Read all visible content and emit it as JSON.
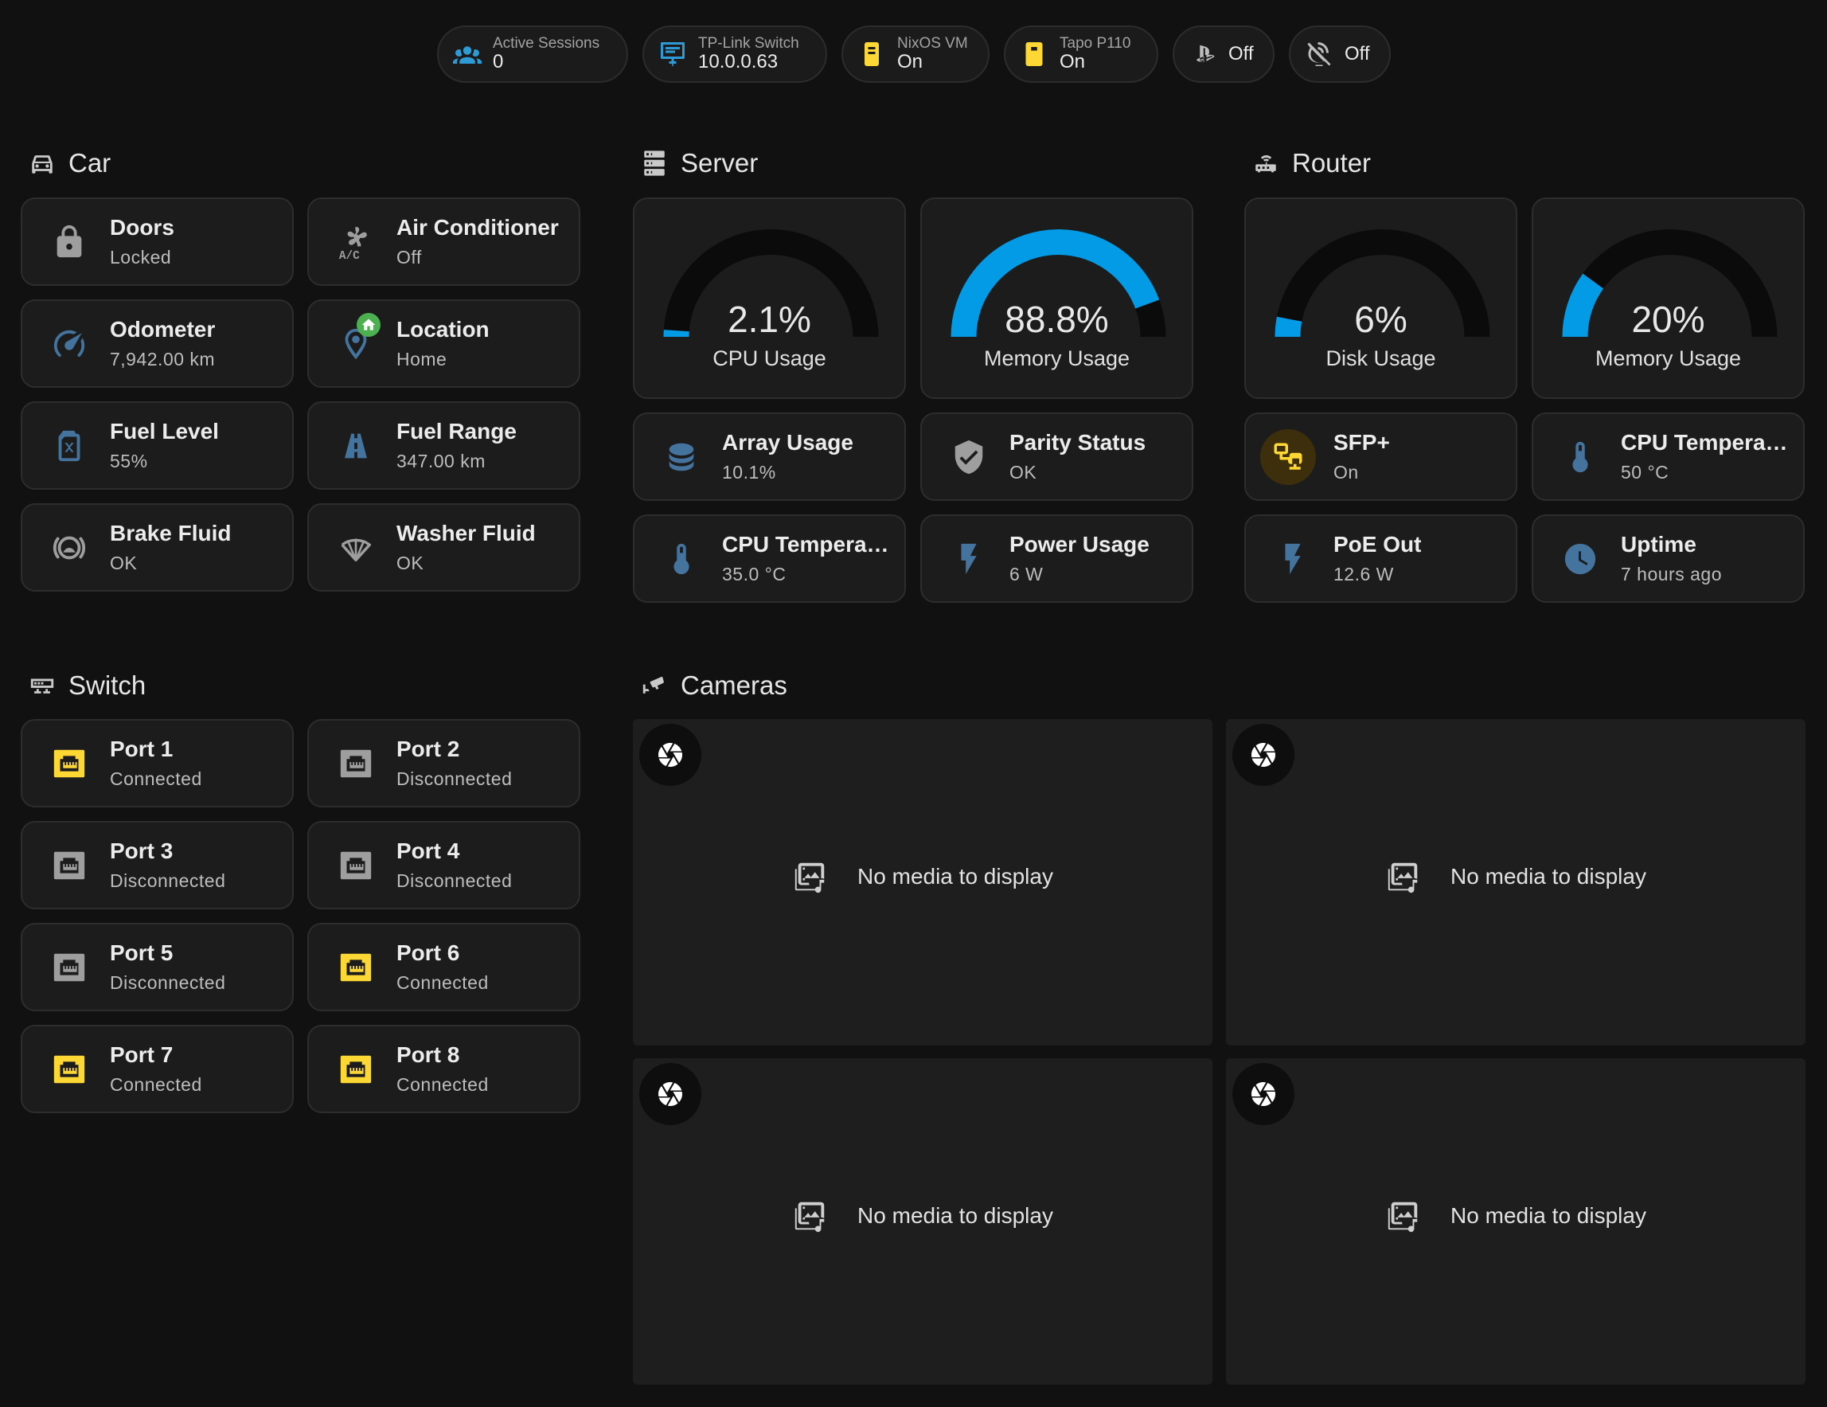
{
  "chips": [
    {
      "label": "Active Sessions",
      "value": "0",
      "icon": "account-group-icon"
    },
    {
      "label": "TP-Link Switch",
      "value": "10.0.0.63",
      "icon": "monitor-network-icon"
    },
    {
      "label": "NixOS VM",
      "value": "On",
      "icon": "server-icon"
    },
    {
      "label": "Tapo P110",
      "value": "On",
      "icon": "power-plug-icon"
    },
    {
      "value": "Off",
      "icon": "playstation-icon"
    },
    {
      "value": "Off",
      "icon": "satellite-off-icon"
    }
  ],
  "sections": {
    "car": "Car",
    "server": "Server",
    "router": "Router",
    "switch": "Switch",
    "cameras": "Cameras"
  },
  "car": [
    {
      "name": "Doors",
      "state": "Locked",
      "icon": "lock-icon"
    },
    {
      "name": "Air Conditioner",
      "state": "Off",
      "icon": "air-conditioner-icon"
    },
    {
      "name": "Odometer",
      "state": "7,942.00 km",
      "icon": "speedometer-icon"
    },
    {
      "name": "Location",
      "state": "Home",
      "icon": "map-marker-icon"
    },
    {
      "name": "Fuel Level",
      "state": "55%",
      "icon": "fuel-can-icon"
    },
    {
      "name": "Fuel Range",
      "state": "347.00 km",
      "icon": "road-icon"
    },
    {
      "name": "Brake Fluid",
      "state": "OK",
      "icon": "brake-icon"
    },
    {
      "name": "Washer Fluid",
      "state": "OK",
      "icon": "wiper-fluid-icon"
    }
  ],
  "server": {
    "gauges": [
      {
        "value": "2.1%",
        "name": "CPU Usage",
        "fraction": 0.021
      },
      {
        "value": "88.8%",
        "name": "Memory Usage",
        "fraction": 0.888
      }
    ],
    "tiles": [
      {
        "name": "Array Usage",
        "state": "10.1%",
        "icon": "database-icon"
      },
      {
        "name": "Parity Status",
        "state": "OK",
        "icon": "shield-check-icon"
      },
      {
        "name": "CPU Temperature",
        "state": "35.0 °C",
        "icon": "thermometer-icon"
      },
      {
        "name": "Power Usage",
        "state": "6 W",
        "icon": "flash-icon"
      }
    ]
  },
  "router": {
    "gauges": [
      {
        "value": "6%",
        "name": "Disk Usage",
        "fraction": 0.06
      },
      {
        "value": "20%",
        "name": "Memory Usage",
        "fraction": 0.2
      }
    ],
    "tiles": [
      {
        "name": "SFP+",
        "state": "On",
        "icon": "lan-icon"
      },
      {
        "name": "CPU Temperature",
        "state": "50 °C",
        "icon": "thermometer-icon"
      },
      {
        "name": "PoE Out",
        "state": "12.6 W",
        "icon": "flash-icon"
      },
      {
        "name": "Uptime",
        "state": "7 hours ago",
        "icon": "clock-icon"
      }
    ]
  },
  "switch": [
    {
      "name": "Port 1",
      "state": "Connected"
    },
    {
      "name": "Port 2",
      "state": "Disconnected"
    },
    {
      "name": "Port 3",
      "state": "Disconnected"
    },
    {
      "name": "Port 4",
      "state": "Disconnected"
    },
    {
      "name": "Port 5",
      "state": "Disconnected"
    },
    {
      "name": "Port 6",
      "state": "Connected"
    },
    {
      "name": "Port 7",
      "state": "Connected"
    },
    {
      "name": "Port 8",
      "state": "Connected"
    }
  ],
  "cameras": [
    {
      "message": "No media to display"
    },
    {
      "message": "No media to display"
    },
    {
      "message": "No media to display"
    },
    {
      "message": "No media to display"
    }
  ],
  "colors": {
    "accent": "#039be5",
    "active": "#fdd835",
    "inactive": "#9e9e9e",
    "icon": "#44739e",
    "home": "#4caf50",
    "background": "#111111",
    "card": "#1c1c1c"
  }
}
